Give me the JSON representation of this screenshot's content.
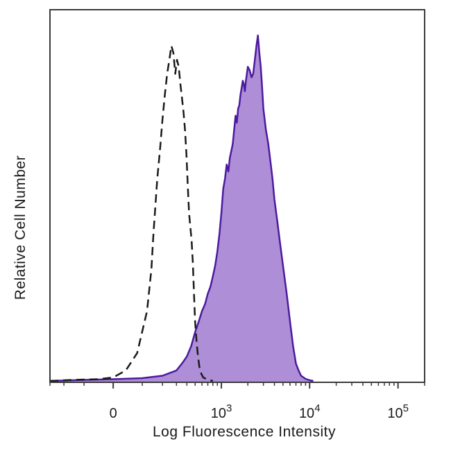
{
  "chart_data": {
    "type": "area",
    "title": "",
    "xlabel": "Log Fluorescence Intensity",
    "ylabel": "Relative Cell Number",
    "x_scale": "biexponential",
    "xlim": [
      -300,
      200000
    ],
    "ylim": [
      0,
      100
    ],
    "x_ticks": [
      {
        "value": 0,
        "base": "0",
        "exp": ""
      },
      {
        "value": 1000,
        "base": "10",
        "exp": "3"
      },
      {
        "value": 10000,
        "base": "10",
        "exp": "4"
      },
      {
        "value": 100000,
        "base": "10",
        "exp": "5"
      }
    ],
    "grid": false,
    "legend": "none",
    "series": [
      {
        "style": "dashed",
        "color": "#1a1a1a",
        "fill": "none",
        "points": [
          [
            -300,
            0
          ],
          [
            -150,
            0.3
          ],
          [
            -50,
            0.5
          ],
          [
            0,
            1
          ],
          [
            40,
            3
          ],
          [
            80,
            8
          ],
          [
            120,
            20
          ],
          [
            140,
            32
          ],
          [
            150,
            42
          ],
          [
            160,
            50
          ],
          [
            170,
            58
          ],
          [
            185,
            66
          ],
          [
            200,
            75
          ],
          [
            215,
            82
          ],
          [
            230,
            88
          ],
          [
            245,
            92
          ],
          [
            260,
            96
          ],
          [
            275,
            94
          ],
          [
            290,
            88
          ],
          [
            305,
            92
          ],
          [
            320,
            90
          ],
          [
            335,
            85
          ],
          [
            350,
            81
          ],
          [
            365,
            77
          ],
          [
            380,
            72
          ],
          [
            395,
            65
          ],
          [
            410,
            56
          ],
          [
            425,
            48
          ],
          [
            440,
            44
          ],
          [
            455,
            40
          ],
          [
            470,
            34
          ],
          [
            485,
            25
          ],
          [
            500,
            17
          ],
          [
            520,
            11
          ],
          [
            540,
            7
          ],
          [
            560,
            4
          ],
          [
            590,
            2
          ],
          [
            620,
            1
          ],
          [
            700,
            0.3
          ],
          [
            800,
            0
          ]
        ]
      },
      {
        "style": "solid",
        "color": "#4b1a9e",
        "fill": "#ae8ed6",
        "points": [
          [
            -300,
            0
          ],
          [
            -100,
            0.3
          ],
          [
            0,
            0.5
          ],
          [
            100,
            0.8
          ],
          [
            200,
            1.5
          ],
          [
            300,
            3
          ],
          [
            350,
            5
          ],
          [
            400,
            7
          ],
          [
            450,
            10
          ],
          [
            500,
            14
          ],
          [
            550,
            17
          ],
          [
            600,
            20
          ],
          [
            650,
            22
          ],
          [
            700,
            25
          ],
          [
            750,
            27
          ],
          [
            800,
            30
          ],
          [
            850,
            33
          ],
          [
            900,
            37
          ],
          [
            950,
            42
          ],
          [
            1000,
            48
          ],
          [
            1050,
            55
          ],
          [
            1100,
            58
          ],
          [
            1150,
            62
          ],
          [
            1200,
            60
          ],
          [
            1250,
            64
          ],
          [
            1300,
            66
          ],
          [
            1350,
            68
          ],
          [
            1400,
            72
          ],
          [
            1450,
            76
          ],
          [
            1500,
            74
          ],
          [
            1550,
            78
          ],
          [
            1600,
            79
          ],
          [
            1650,
            82
          ],
          [
            1700,
            84
          ],
          [
            1750,
            86
          ],
          [
            1800,
            85
          ],
          [
            1850,
            83
          ],
          [
            1900,
            86
          ],
          [
            1950,
            88
          ],
          [
            2000,
            90
          ],
          [
            2100,
            89
          ],
          [
            2200,
            87
          ],
          [
            2300,
            88
          ],
          [
            2400,
            92
          ],
          [
            2500,
            96
          ],
          [
            2600,
            99
          ],
          [
            2700,
            94
          ],
          [
            2800,
            90
          ],
          [
            2900,
            84
          ],
          [
            3000,
            78
          ],
          [
            3200,
            72
          ],
          [
            3400,
            68
          ],
          [
            3600,
            63
          ],
          [
            3800,
            58
          ],
          [
            4000,
            52
          ],
          [
            4300,
            46
          ],
          [
            4600,
            40
          ],
          [
            5000,
            33
          ],
          [
            5500,
            25
          ],
          [
            6000,
            17
          ],
          [
            6500,
            10
          ],
          [
            7000,
            5
          ],
          [
            7500,
            3
          ],
          [
            8000,
            1.5
          ],
          [
            9000,
            0.6
          ],
          [
            10000,
            0.2
          ],
          [
            11000,
            0
          ]
        ]
      }
    ]
  }
}
